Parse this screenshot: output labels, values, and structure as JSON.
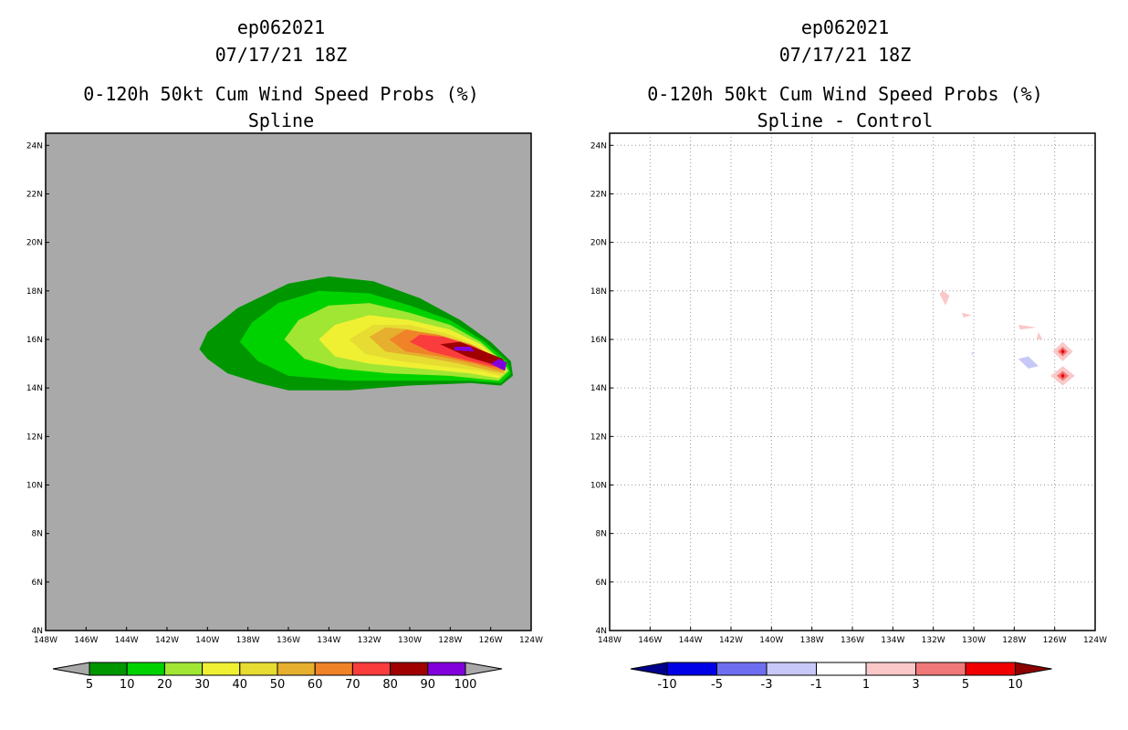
{
  "left": {
    "title_line1": "ep062021",
    "title_line2": "07/17/21 18Z",
    "title_line3": "0-120h 50kt Cum Wind Speed Probs (%)",
    "title_line4": "Spline"
  },
  "right": {
    "title_line1": "ep062021",
    "title_line2": "07/17/21 18Z",
    "title_line3": "0-120h 50kt Cum Wind Speed Probs (%)",
    "title_line4": "Spline - Control"
  },
  "chart_data": [
    {
      "type": "heatmap",
      "title": "0-120h 50kt Cum Wind Speed Probs (%) - Spline",
      "xlim": [
        -148,
        -124
      ],
      "ylim": [
        4,
        24.5
      ],
      "x_ticks": [
        "148W",
        "146W",
        "144W",
        "142W",
        "140W",
        "138W",
        "136W",
        "134W",
        "132W",
        "130W",
        "128W",
        "126W",
        "124W"
      ],
      "y_ticks": [
        "4N",
        "6N",
        "8N",
        "10N",
        "12N",
        "14N",
        "16N",
        "18N",
        "20N",
        "22N",
        "24N"
      ],
      "background_color": "#a9a9a9",
      "colorbar": {
        "levels": [
          "5",
          "10",
          "20",
          "30",
          "40",
          "50",
          "60",
          "70",
          "80",
          "90",
          "100"
        ],
        "colors": [
          "#009600",
          "#00d200",
          "#a0e632",
          "#f0f032",
          "#e6dc32",
          "#e6af2d",
          "#f08228",
          "#fa3c3c",
          "#a00000",
          "#8200dc"
        ],
        "under_color": "#a9a9a9",
        "over_color": "#a9a9a9"
      },
      "regions": [
        {
          "level": 5,
          "color": "#009600",
          "points": [
            [
              -140.4,
              15.6
            ],
            [
              -140,
              15.2
            ],
            [
              -139,
              14.6
            ],
            [
              -137.5,
              14.2
            ],
            [
              -136,
              13.9
            ],
            [
              -133,
              13.9
            ],
            [
              -130,
              14.1
            ],
            [
              -127,
              14.2
            ],
            [
              -125.5,
              14.1
            ],
            [
              -124.9,
              14.5
            ],
            [
              -125,
              15.1
            ],
            [
              -126,
              15.9
            ],
            [
              -127.5,
              16.8
            ],
            [
              -129.5,
              17.7
            ],
            [
              -131.8,
              18.4
            ],
            [
              -134,
              18.6
            ],
            [
              -136,
              18.3
            ],
            [
              -138.5,
              17.3
            ],
            [
              -140,
              16.3
            ]
          ]
        },
        {
          "level": 10,
          "color": "#00d200",
          "points": [
            [
              -138.4,
              15.9
            ],
            [
              -137.5,
              15.1
            ],
            [
              -136,
              14.5
            ],
            [
              -133,
              14.3
            ],
            [
              -130,
              14.3
            ],
            [
              -127,
              14.3
            ],
            [
              -125.5,
              14.2
            ],
            [
              -125,
              14.6
            ],
            [
              -125.2,
              15.1
            ],
            [
              -126.3,
              15.9
            ],
            [
              -128,
              16.8
            ],
            [
              -130,
              17.4
            ],
            [
              -132,
              17.9
            ],
            [
              -134.5,
              18
            ],
            [
              -136.5,
              17.5
            ],
            [
              -137.8,
              16.7
            ]
          ]
        },
        {
          "level": 20,
          "color": "#a0e632",
          "points": [
            [
              -136.2,
              16
            ],
            [
              -135.2,
              15.2
            ],
            [
              -133.5,
              14.8
            ],
            [
              -131,
              14.6
            ],
            [
              -128,
              14.5
            ],
            [
              -125.6,
              14.3
            ],
            [
              -125.1,
              14.7
            ],
            [
              -125.4,
              15.1
            ],
            [
              -126.5,
              15.9
            ],
            [
              -128,
              16.6
            ],
            [
              -130,
              17.1
            ],
            [
              -132,
              17.5
            ],
            [
              -134,
              17.4
            ],
            [
              -135.5,
              16.8
            ]
          ]
        },
        {
          "level": 30,
          "color": "#f0f032",
          "points": [
            [
              -134.5,
              16
            ],
            [
              -133.7,
              15.3
            ],
            [
              -132,
              15
            ],
            [
              -129.5,
              14.8
            ],
            [
              -127,
              14.6
            ],
            [
              -125.6,
              14.4
            ],
            [
              -125.2,
              14.7
            ],
            [
              -125.5,
              15.1
            ],
            [
              -126.5,
              15.8
            ],
            [
              -128,
              16.4
            ],
            [
              -130,
              16.8
            ],
            [
              -132,
              17
            ],
            [
              -133.7,
              16.6
            ]
          ]
        },
        {
          "level": 40,
          "color": "#e6dc32",
          "points": [
            [
              -133,
              16
            ],
            [
              -132.2,
              15.4
            ],
            [
              -130.5,
              15.1
            ],
            [
              -128.5,
              14.9
            ],
            [
              -126.5,
              14.7
            ],
            [
              -125.5,
              14.5
            ],
            [
              -125.2,
              14.8
            ],
            [
              -125.6,
              15.1
            ],
            [
              -126.6,
              15.7
            ],
            [
              -128,
              16.2
            ],
            [
              -130,
              16.6
            ],
            [
              -131.8,
              16.6
            ]
          ]
        },
        {
          "level": 50,
          "color": "#e6af2d",
          "points": [
            [
              -132,
              16.1
            ],
            [
              -131.2,
              15.5
            ],
            [
              -129.5,
              15.3
            ],
            [
              -127.5,
              15
            ],
            [
              -126,
              14.7
            ],
            [
              -125.3,
              14.6
            ],
            [
              -125.6,
              15.1
            ],
            [
              -126.6,
              15.6
            ],
            [
              -128,
              16
            ],
            [
              -130,
              16.4
            ],
            [
              -131.2,
              16.5
            ]
          ]
        },
        {
          "level": 60,
          "color": "#f08228",
          "points": [
            [
              -131,
              16
            ],
            [
              -130.2,
              15.5
            ],
            [
              -128.5,
              15.3
            ],
            [
              -126.8,
              15
            ],
            [
              -125.5,
              14.7
            ],
            [
              -125.3,
              14.9
            ],
            [
              -125.8,
              15.3
            ],
            [
              -127,
              15.8
            ],
            [
              -128.6,
              16.2
            ],
            [
              -130.2,
              16.4
            ]
          ]
        },
        {
          "level": 70,
          "color": "#fa3c3c",
          "points": [
            [
              -130,
              15.9
            ],
            [
              -129,
              15.5
            ],
            [
              -127.5,
              15.2
            ],
            [
              -126,
              14.9
            ],
            [
              -125.3,
              14.8
            ],
            [
              -125.6,
              15.2
            ],
            [
              -126.8,
              15.7
            ],
            [
              -128.3,
              16.1
            ],
            [
              -129.5,
              16.2
            ]
          ]
        },
        {
          "level": 80,
          "color": "#a00000",
          "points": [
            [
              -128.5,
              15.8
            ],
            [
              -127.2,
              15.3
            ],
            [
              -126,
              15
            ],
            [
              -125.3,
              14.9
            ],
            [
              -125.4,
              15.2
            ],
            [
              -126.3,
              15.5
            ],
            [
              -127.5,
              15.9
            ]
          ]
        },
        {
          "level": 90,
          "color": "#8200dc",
          "points": [
            [
              -126,
              15
            ],
            [
              -125.3,
              14.7
            ],
            [
              -125.2,
              15.05
            ],
            [
              -125.6,
              15.2
            ]
          ]
        },
        {
          "level": 90,
          "color": "#8200dc",
          "points": [
            [
              -127.8,
              15.55
            ],
            [
              -126.8,
              15.5
            ],
            [
              -127.0,
              15.7
            ],
            [
              -127.8,
              15.7
            ]
          ]
        }
      ]
    },
    {
      "type": "heatmap",
      "title": "0-120h 50kt Cum Wind Speed Probs (%) - Spline - Control",
      "xlim": [
        -148,
        -124
      ],
      "ylim": [
        4,
        24.5
      ],
      "x_ticks": [
        "148W",
        "146W",
        "144W",
        "142W",
        "140W",
        "138W",
        "136W",
        "134W",
        "132W",
        "130W",
        "128W",
        "126W",
        "124W"
      ],
      "y_ticks": [
        "4N",
        "6N",
        "8N",
        "10N",
        "12N",
        "14N",
        "16N",
        "18N",
        "20N",
        "22N",
        "24N"
      ],
      "background_color": "#ffffff",
      "grid": true,
      "colorbar": {
        "levels": [
          "-10",
          "-5",
          "-3",
          "-1",
          "1",
          "3",
          "5",
          "10"
        ],
        "colors": [
          "#0000e6",
          "#6e6ef0",
          "#c8c8f8",
          "#ffffff",
          "#fac8c8",
          "#f07878",
          "#f00000"
        ],
        "under_color": "#00008c",
        "over_color": "#8c0000"
      },
      "regions": [
        {
          "level": 1,
          "color": "#fac8c8",
          "points": [
            [
              -131.5,
              18
            ],
            [
              -131.2,
              17.8
            ],
            [
              -131.4,
              17.4
            ],
            [
              -131.7,
              17.9
            ]
          ]
        },
        {
          "level": 1,
          "color": "#fac8c8",
          "points": [
            [
              -130.6,
              17.1
            ],
            [
              -130.1,
              17.0
            ],
            [
              -130.5,
              16.9
            ]
          ]
        },
        {
          "level": 1,
          "color": "#fac8c8",
          "points": [
            [
              -127.8,
              16.6
            ],
            [
              -126.9,
              16.5
            ],
            [
              -127.7,
              16.4
            ]
          ]
        },
        {
          "level": 1,
          "color": "#fac8c8",
          "points": [
            [
              -126.8,
              16.3
            ],
            [
              -126.6,
              16.0
            ],
            [
              -126.9,
              16.0
            ]
          ]
        },
        {
          "level": 1,
          "color": "#fac8c8",
          "points": [
            [
              -125.6,
              15.9
            ],
            [
              -125.1,
              15.5
            ],
            [
              -125.6,
              15.1
            ],
            [
              -126.1,
              15.5
            ]
          ]
        },
        {
          "level": 1,
          "color": "#fac8c8",
          "points": [
            [
              -125.6,
              14.9
            ],
            [
              -125.0,
              14.5
            ],
            [
              -125.6,
              14.1
            ],
            [
              -126.2,
              14.5
            ]
          ]
        },
        {
          "level": 3,
          "color": "#f07878",
          "points": [
            [
              -125.6,
              15.7
            ],
            [
              -125.35,
              15.5
            ],
            [
              -125.6,
              15.3
            ],
            [
              -125.85,
              15.5
            ]
          ]
        },
        {
          "level": 3,
          "color": "#f07878",
          "points": [
            [
              -125.6,
              14.7
            ],
            [
              -125.3,
              14.5
            ],
            [
              -125.6,
              14.3
            ],
            [
              -125.9,
              14.5
            ]
          ]
        },
        {
          "level": 5,
          "color": "#f00000",
          "points": [
            [
              -125.6,
              15.6
            ],
            [
              -125.5,
              15.5
            ],
            [
              -125.6,
              15.4
            ],
            [
              -125.7,
              15.5
            ]
          ]
        },
        {
          "level": 5,
          "color": "#f00000",
          "points": [
            [
              -125.6,
              14.6
            ],
            [
              -125.5,
              14.5
            ],
            [
              -125.6,
              14.4
            ],
            [
              -125.7,
              14.5
            ]
          ]
        },
        {
          "level": -1,
          "color": "#c8c8f8",
          "points": [
            [
              -127.8,
              15.2
            ],
            [
              -127.3,
              14.8
            ],
            [
              -126.8,
              14.9
            ],
            [
              -127.3,
              15.3
            ]
          ]
        },
        {
          "level": -1,
          "color": "#c8c8f8",
          "points": [
            [
              -130.1,
              15.5
            ],
            [
              -130.0,
              15.4
            ],
            [
              -130.1,
              15.35
            ]
          ]
        }
      ]
    }
  ]
}
